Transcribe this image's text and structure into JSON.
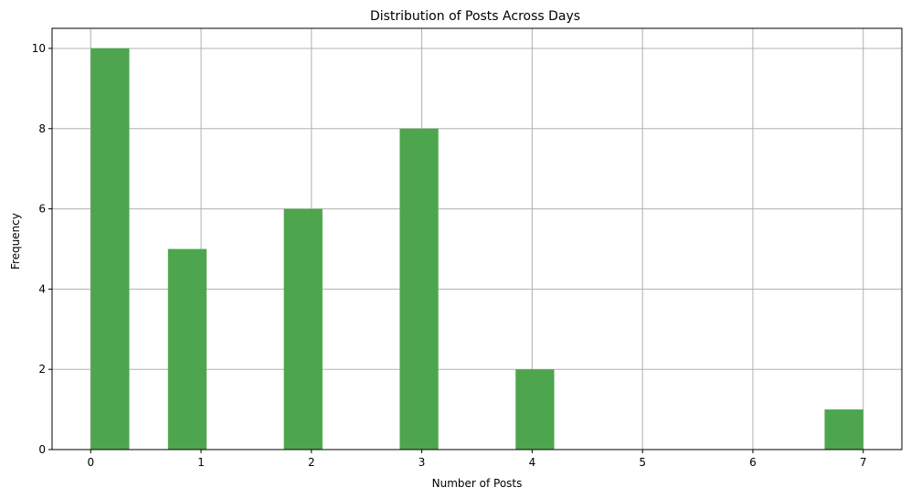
{
  "chart_data": {
    "type": "bar",
    "title": "Distribution of Posts Across Days",
    "xlabel": "Number of Posts",
    "ylabel": "Frequency",
    "bins": [
      {
        "start": 0.0,
        "end": 0.35,
        "count": 10
      },
      {
        "start": 0.7,
        "end": 1.05,
        "count": 5
      },
      {
        "start": 1.75,
        "end": 2.1,
        "count": 6
      },
      {
        "start": 2.8,
        "end": 3.15,
        "count": 8
      },
      {
        "start": 3.85,
        "end": 4.2,
        "count": 2
      },
      {
        "start": 6.65,
        "end": 7.0,
        "count": 1
      }
    ],
    "xlim": [
      -0.35,
      7.35
    ],
    "ylim": [
      0,
      10.5
    ],
    "xticks": [
      0,
      1,
      2,
      3,
      4,
      5,
      6,
      7
    ],
    "yticks": [
      0,
      2,
      4,
      6,
      8,
      10
    ],
    "grid": true,
    "bar_color": "#4da64d",
    "grid_color": "#b0b0b0"
  }
}
